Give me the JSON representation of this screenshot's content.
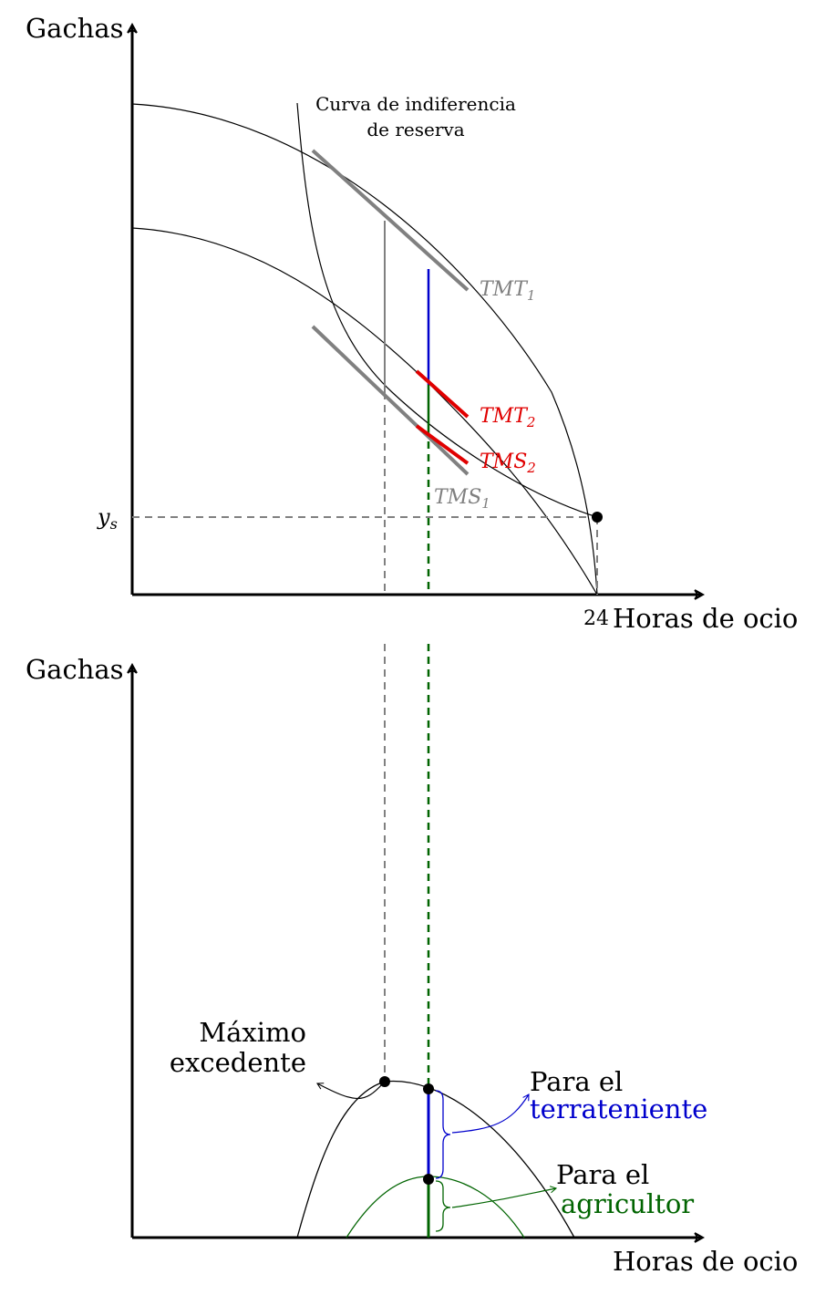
{
  "top_panel": {
    "y_axis_label": "Gachas",
    "x_axis_label": "Horas de ocio",
    "x_tick": "24",
    "y_tick": "y",
    "y_tick_sub": "s",
    "curve_annotation": [
      "Curva de indiferencia",
      "de reserva"
    ],
    "labels": {
      "tmt1_main": "TMT",
      "tmt1_sub": "1",
      "tmt2_main": "TMT",
      "tmt2_sub": "2",
      "tms2_main": "TMS",
      "tms2_sub": "2",
      "tms1_main": "TMS",
      "tms1_sub": "1"
    }
  },
  "bottom_panel": {
    "y_axis_label": "Gachas",
    "x_axis_label": "Horas de ocio",
    "max_surplus_label": [
      "Máximo",
      "excedente"
    ],
    "landowner_label": [
      "Para el",
      "terrateniente"
    ],
    "farmer_label": [
      "Para el",
      "agricultor"
    ]
  },
  "colors": {
    "black": "#000000",
    "gray": "#808080",
    "red": "#e00000",
    "blue": "#0000cc",
    "green": "#006400"
  }
}
